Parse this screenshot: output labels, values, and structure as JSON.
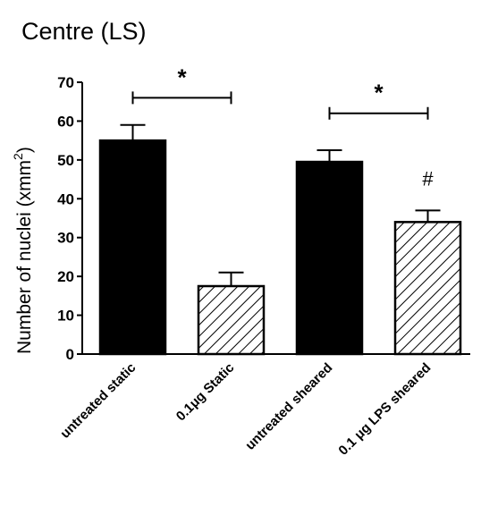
{
  "chart_data": {
    "type": "bar",
    "title": "Centre (LS)",
    "ylabel": "Number of nuclei (xmm",
    "ylabel_sup": "2",
    "ylabel_close": ")",
    "xlabel": "",
    "ylim": [
      0,
      70
    ],
    "yticks": [
      0,
      10,
      20,
      30,
      40,
      50,
      60,
      70
    ],
    "categories": [
      "untreated static",
      "0.1μg Static",
      "untreated sheared",
      "0.1 μg LPS sheared"
    ],
    "values": [
      55,
      17.5,
      49.5,
      34
    ],
    "errors": [
      4,
      3.5,
      3,
      3
    ],
    "fills": [
      "solid",
      "hatched",
      "solid",
      "hatched"
    ],
    "grid": false,
    "annotations": [
      {
        "type": "bracket",
        "from": 0,
        "to": 1,
        "y": 66,
        "label": "*"
      },
      {
        "type": "bracket",
        "from": 2,
        "to": 3,
        "y": 62,
        "label": "*"
      },
      {
        "type": "marker",
        "bar": 3,
        "label": "#"
      }
    ]
  },
  "colors": {
    "solid": "#000000",
    "hatch": "#000000",
    "background": "#ffffff"
  }
}
